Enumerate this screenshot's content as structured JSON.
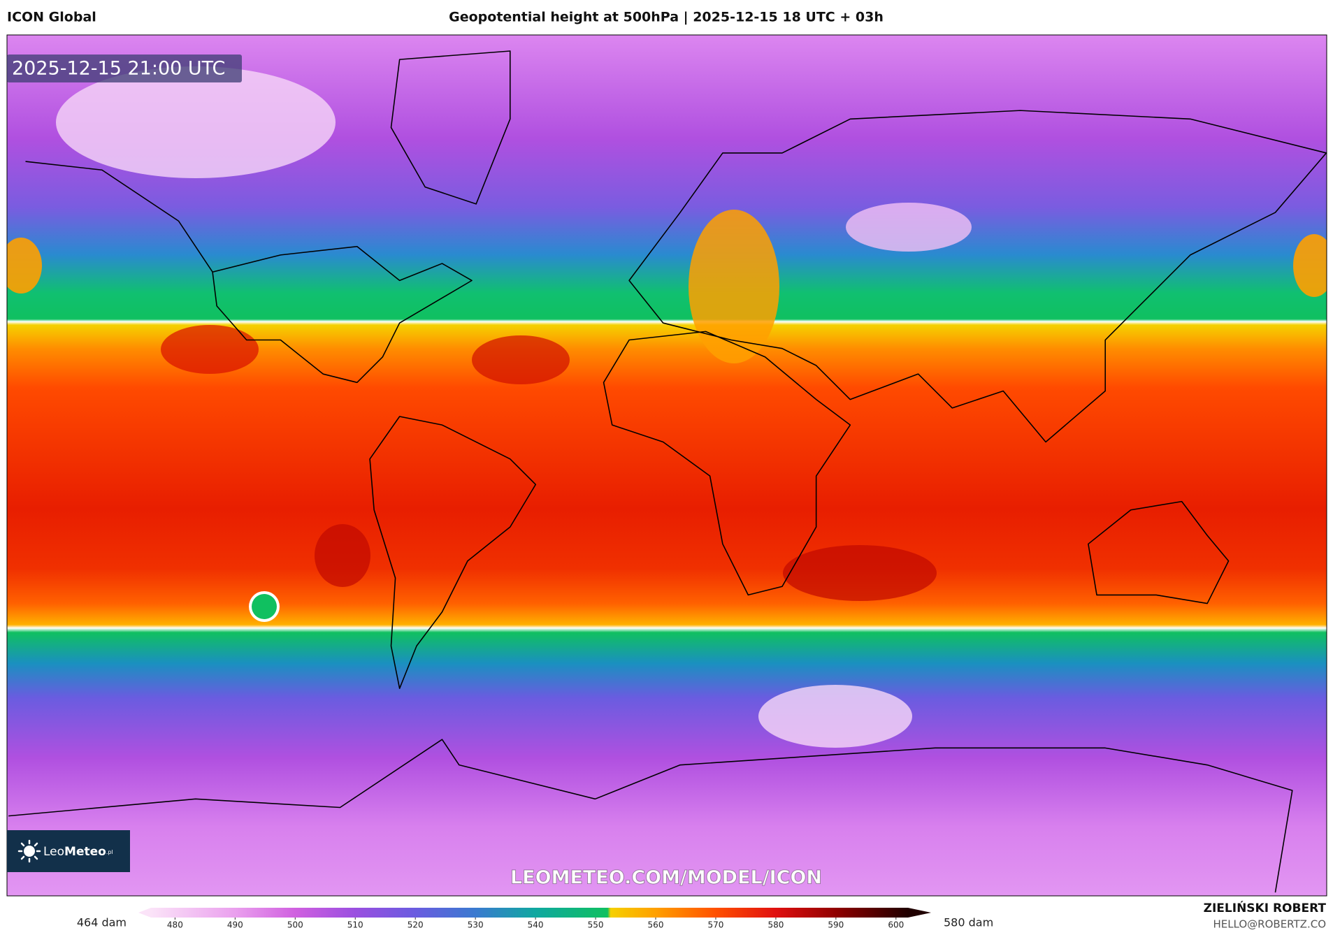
{
  "header": {
    "left": "ICON Global",
    "title": "Geopotential height at 500hPa | 2025-12-15 18 UTC + 03h"
  },
  "map": {
    "valid_time": "2025-12-15 21:00 UTC",
    "watermark": "LEOMETEO.COM/MODEL/ICON",
    "logo": {
      "text_a": "Leo",
      "text_b": "Meteo",
      "suffix": ".pl"
    }
  },
  "colorbar": {
    "lim": [
      476,
      602
    ],
    "ticks": [
      480,
      490,
      500,
      510,
      520,
      530,
      540,
      550,
      560,
      570,
      580,
      590,
      600
    ],
    "min_label": "464 dam",
    "max_label": "580 dam",
    "stops": [
      {
        "value": 476,
        "color": "#fbe3f8"
      },
      {
        "value": 490,
        "color": "#eaa0ee"
      },
      {
        "value": 500,
        "color": "#d060e0"
      },
      {
        "value": 510,
        "color": "#9a4fe0"
      },
      {
        "value": 520,
        "color": "#6a5ce0"
      },
      {
        "value": 530,
        "color": "#3a7ad0"
      },
      {
        "value": 540,
        "color": "#10a8a0"
      },
      {
        "value": 552,
        "color": "#10c060"
      },
      {
        "value": 552.5,
        "color": "#f5d000"
      },
      {
        "value": 560,
        "color": "#ffa000"
      },
      {
        "value": 570,
        "color": "#ff5000"
      },
      {
        "value": 580,
        "color": "#e01010"
      },
      {
        "value": 590,
        "color": "#900000"
      },
      {
        "value": 602,
        "color": "#200000"
      }
    ]
  },
  "footer": {
    "author": "ZIELIŃSKI ROBERT",
    "email": "HELLO@ROBERTZ.CO"
  }
}
